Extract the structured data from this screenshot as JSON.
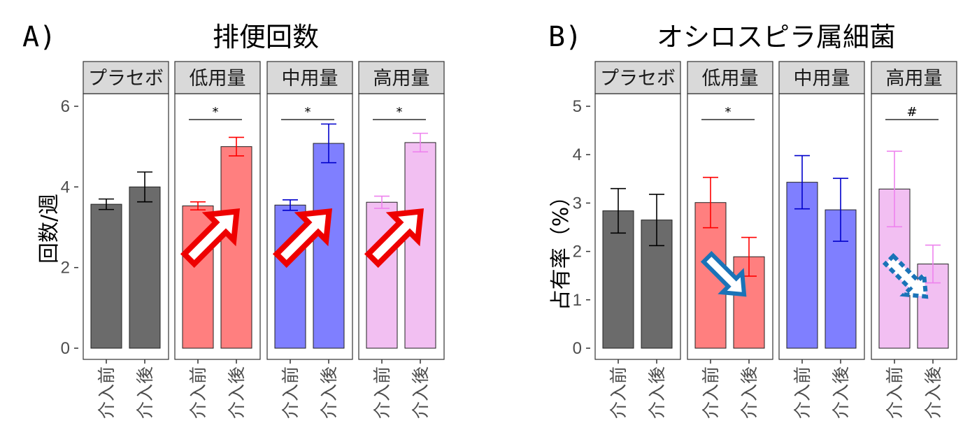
{
  "chart_data": [
    {
      "type": "bar",
      "panel_label": "A)",
      "title": "排便回数",
      "ylabel": "回数/週",
      "ylim": [
        0,
        6.5
      ],
      "yticks": [
        "0",
        "2",
        "4",
        "6"
      ],
      "facets": [
        {
          "name": "プラセボ",
          "color": "#6b6b6b",
          "categories": [
            "介入前",
            "介入後"
          ],
          "values": [
            3.57,
            4.0
          ],
          "errors": [
            0.13,
            0.37
          ],
          "significance": "",
          "trend": ""
        },
        {
          "name": "低用量",
          "color": "#ff7f7f",
          "categories": [
            "介入前",
            "介入後"
          ],
          "values": [
            3.53,
            5.0
          ],
          "errors": [
            0.1,
            0.23
          ],
          "significance": "*",
          "trend": "up"
        },
        {
          "name": "中用量",
          "color": "#7f7fff",
          "categories": [
            "介入前",
            "介入後"
          ],
          "values": [
            3.55,
            5.08
          ],
          "errors": [
            0.13,
            0.48
          ],
          "significance": "*",
          "trend": "up"
        },
        {
          "name": "高用量",
          "color": "#f2bff2",
          "categories": [
            "介入前",
            "介入後"
          ],
          "values": [
            3.62,
            5.1
          ],
          "errors": [
            0.15,
            0.23
          ],
          "significance": "*",
          "trend": "up"
        }
      ]
    },
    {
      "type": "bar",
      "panel_label": "B)",
      "title": "オシロスピラ属細菌",
      "ylabel": "占有率（%）",
      "ylim": [
        0,
        5.4
      ],
      "yticks": [
        "0",
        "1",
        "2",
        "3",
        "4",
        "5"
      ],
      "facets": [
        {
          "name": "プラセボ",
          "color": "#6b6b6b",
          "categories": [
            "介入前",
            "介入後"
          ],
          "values": [
            2.84,
            2.65
          ],
          "errors": [
            0.46,
            0.53
          ],
          "significance": "",
          "trend": ""
        },
        {
          "name": "低用量",
          "color": "#ff7f7f",
          "categories": [
            "介入前",
            "介入後"
          ],
          "values": [
            3.01,
            1.89
          ],
          "errors": [
            0.52,
            0.4
          ],
          "significance": "*",
          "trend": "down"
        },
        {
          "name": "中用量",
          "color": "#7f7fff",
          "categories": [
            "介入前",
            "介入後"
          ],
          "values": [
            3.43,
            2.86
          ],
          "errors": [
            0.55,
            0.65
          ],
          "significance": "",
          "trend": ""
        },
        {
          "name": "高用量",
          "color": "#f2bff2",
          "categories": [
            "介入前",
            "介入後"
          ],
          "values": [
            3.29,
            1.74
          ],
          "errors": [
            0.78,
            0.39
          ],
          "significance": "#",
          "trend": "down-dashed"
        }
      ]
    }
  ]
}
